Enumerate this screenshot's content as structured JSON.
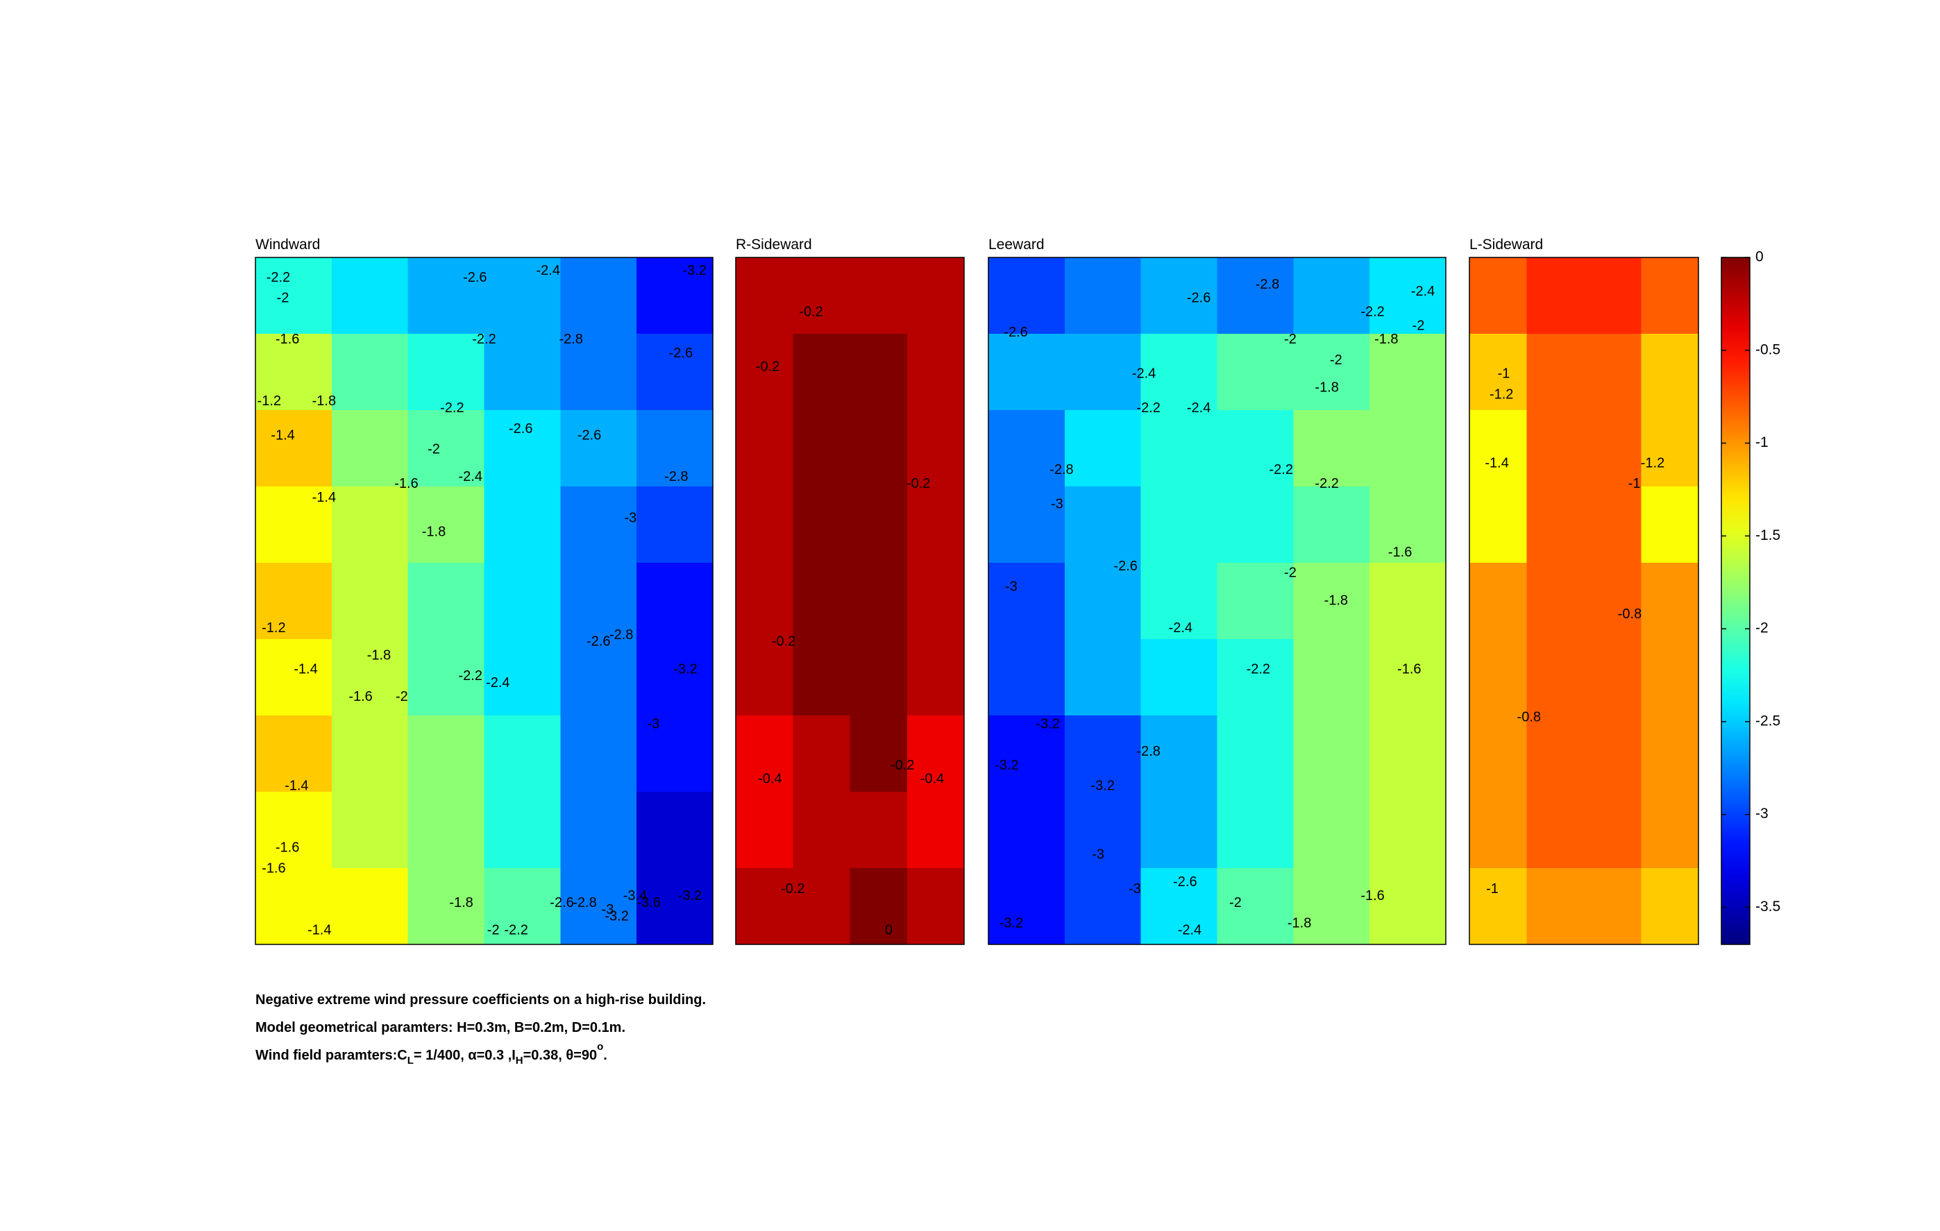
{
  "chart_data": [
    {
      "type": "contour",
      "title": "Windward",
      "xlim": [
        0,
        100
      ],
      "ylim": [
        0,
        100
      ],
      "values": [
        [
          -2.2,
          -2.4,
          -2.6,
          -2.6,
          -2.8,
          -3.2
        ],
        [
          -1.7,
          -2.0,
          -2.2,
          -2.6,
          -2.8,
          -3.0
        ],
        [
          -1.3,
          -1.8,
          -2.1,
          -2.5,
          -2.7,
          -2.8
        ],
        [
          -1.4,
          -1.6,
          -1.9,
          -2.5,
          -2.9,
          -3.1
        ],
        [
          -1.3,
          -1.7,
          -2.0,
          -2.4,
          -2.8,
          -3.2
        ],
        [
          -1.4,
          -1.7,
          -2.1,
          -2.4,
          -2.9,
          -3.2
        ],
        [
          -1.3,
          -1.6,
          -1.9,
          -2.3,
          -2.8,
          -3.3
        ],
        [
          -1.5,
          -1.6,
          -1.9,
          -2.2,
          -2.8,
          -3.4
        ],
        [
          -1.5,
          -1.5,
          -1.8,
          -2.1,
          -2.9,
          -3.5
        ]
      ],
      "labels": [
        {
          "value": -2.2,
          "x": 5,
          "y": 97
        },
        {
          "value": -2,
          "x": 6,
          "y": 94
        },
        {
          "value": -1.6,
          "x": 7,
          "y": 88
        },
        {
          "value": -1.2,
          "x": 3,
          "y": 79
        },
        {
          "value": -1.8,
          "x": 15,
          "y": 79
        },
        {
          "value": -1.4,
          "x": 6,
          "y": 74
        },
        {
          "value": -2.6,
          "x": 48,
          "y": 97
        },
        {
          "value": -2.4,
          "x": 64,
          "y": 98
        },
        {
          "value": -2.2,
          "x": 50,
          "y": 88
        },
        {
          "value": -2.8,
          "x": 69,
          "y": 88
        },
        {
          "value": -2.6,
          "x": 93,
          "y": 86
        },
        {
          "value": -2.2,
          "x": 43,
          "y": 78
        },
        {
          "value": -2.6,
          "x": 58,
          "y": 75
        },
        {
          "value": -2.6,
          "x": 73,
          "y": 74
        },
        {
          "value": -2,
          "x": 39,
          "y": 72
        },
        {
          "value": -2.8,
          "x": 92,
          "y": 68
        },
        {
          "value": -2.4,
          "x": 47,
          "y": 68
        },
        {
          "value": -1.6,
          "x": 33,
          "y": 67
        },
        {
          "value": -1.4,
          "x": 15,
          "y": 65
        },
        {
          "value": -3,
          "x": 82,
          "y": 62
        },
        {
          "value": -1.8,
          "x": 39,
          "y": 60
        },
        {
          "value": -3.2,
          "x": 96,
          "y": 98
        },
        {
          "value": -1.2,
          "x": 4,
          "y": 46
        },
        {
          "value": -1.8,
          "x": 27,
          "y": 42
        },
        {
          "value": -2.6,
          "x": 75,
          "y": 44
        },
        {
          "value": -2.8,
          "x": 80,
          "y": 45
        },
        {
          "value": -1.4,
          "x": 11,
          "y": 40
        },
        {
          "value": -3.2,
          "x": 94,
          "y": 40
        },
        {
          "value": -2.2,
          "x": 47,
          "y": 39
        },
        {
          "value": -2.4,
          "x": 53,
          "y": 38
        },
        {
          "value": -1.6,
          "x": 23,
          "y": 36
        },
        {
          "value": -2,
          "x": 32,
          "y": 36
        },
        {
          "value": -3,
          "x": 87,
          "y": 32
        },
        {
          "value": -1.4,
          "x": 9,
          "y": 23
        },
        {
          "value": -1.6,
          "x": 7,
          "y": 14
        },
        {
          "value": -1.6,
          "x": 4,
          "y": 11
        },
        {
          "value": -1.8,
          "x": 45,
          "y": 6
        },
        {
          "value": -2.6,
          "x": 67,
          "y": 6
        },
        {
          "value": -2.8,
          "x": 72,
          "y": 6
        },
        {
          "value": -3,
          "x": 77,
          "y": 5
        },
        {
          "value": -3.2,
          "x": 79,
          "y": 4
        },
        {
          "value": -3.4,
          "x": 83,
          "y": 7
        },
        {
          "value": -3.6,
          "x": 86,
          "y": 6
        },
        {
          "value": -3.2,
          "x": 95,
          "y": 7
        },
        {
          "value": -1.4,
          "x": 14,
          "y": 2
        },
        {
          "value": -2,
          "x": 52,
          "y": 2
        },
        {
          "value": -2.2,
          "x": 57,
          "y": 2
        }
      ]
    },
    {
      "type": "contour",
      "title": "R-Sideward",
      "xlim": [
        0,
        100
      ],
      "ylim": [
        0,
        100
      ],
      "values": [
        [
          -0.3,
          -0.3,
          -0.3,
          -0.3
        ],
        [
          -0.3,
          -0.1,
          -0.1,
          -0.3
        ],
        [
          -0.3,
          -0.1,
          -0.1,
          -0.3
        ],
        [
          -0.3,
          -0.1,
          -0.1,
          -0.3
        ],
        [
          -0.3,
          -0.1,
          -0.1,
          -0.3
        ],
        [
          -0.3,
          -0.1,
          -0.1,
          -0.3
        ],
        [
          -0.4,
          -0.3,
          -0.1,
          -0.4
        ],
        [
          -0.4,
          -0.3,
          -0.2,
          -0.4
        ],
        [
          -0.3,
          -0.2,
          -0.1,
          -0.3
        ]
      ],
      "labels": [
        {
          "value": -0.2,
          "x": 33,
          "y": 92
        },
        {
          "value": -0.2,
          "x": 14,
          "y": 84
        },
        {
          "value": -0.2,
          "x": 80,
          "y": 67
        },
        {
          "value": -0.2,
          "x": 21,
          "y": 44
        },
        {
          "value": -0.4,
          "x": 15,
          "y": 24
        },
        {
          "value": -0.2,
          "x": 73,
          "y": 26
        },
        {
          "value": -0.4,
          "x": 86,
          "y": 24
        },
        {
          "value": -0.2,
          "x": 25,
          "y": 8
        },
        {
          "value": 0,
          "x": 67,
          "y": 2
        }
      ]
    },
    {
      "type": "contour",
      "title": "Leeward",
      "xlim": [
        0,
        100
      ],
      "ylim": [
        0,
        100
      ],
      "values": [
        [
          -3.0,
          -2.8,
          -2.7,
          -2.9,
          -2.7,
          -2.5
        ],
        [
          -2.6,
          -2.6,
          -2.3,
          -2.1,
          -2.0,
          -1.8
        ],
        [
          -2.8,
          -2.5,
          -2.3,
          -2.2,
          -1.8,
          -1.9
        ],
        [
          -2.9,
          -2.6,
          -2.3,
          -2.2,
          -2.1,
          -1.9
        ],
        [
          -3.1,
          -2.7,
          -2.3,
          -2.1,
          -1.9,
          -1.6
        ],
        [
          -3.0,
          -2.6,
          -2.4,
          -2.2,
          -1.9,
          -1.7
        ],
        [
          -3.2,
          -3.0,
          -2.6,
          -2.2,
          -1.9,
          -1.6
        ],
        [
          -3.2,
          -3.1,
          -2.7,
          -2.2,
          -1.8,
          -1.7
        ],
        [
          -3.3,
          -3.1,
          -2.5,
          -2.0,
          -1.8,
          -1.6
        ]
      ],
      "labels": [
        {
          "value": -2.6,
          "x": 6,
          "y": 89
        },
        {
          "value": -2.6,
          "x": 46,
          "y": 94
        },
        {
          "value": -2.8,
          "x": 61,
          "y": 96
        },
        {
          "value": -2.4,
          "x": 95,
          "y": 95
        },
        {
          "value": -2.2,
          "x": 84,
          "y": 92
        },
        {
          "value": -2,
          "x": 94,
          "y": 90
        },
        {
          "value": -1.8,
          "x": 87,
          "y": 88
        },
        {
          "value": -2,
          "x": 66,
          "y": 88
        },
        {
          "value": -2,
          "x": 76,
          "y": 85
        },
        {
          "value": -1.8,
          "x": 74,
          "y": 81
        },
        {
          "value": -2.4,
          "x": 34,
          "y": 83
        },
        {
          "value": -2.2,
          "x": 35,
          "y": 78
        },
        {
          "value": -2.4,
          "x": 46,
          "y": 78
        },
        {
          "value": -2.8,
          "x": 16,
          "y": 69
        },
        {
          "value": -3,
          "x": 15,
          "y": 64
        },
        {
          "value": -2.2,
          "x": 64,
          "y": 69
        },
        {
          "value": -2.2,
          "x": 74,
          "y": 67
        },
        {
          "value": -2.6,
          "x": 30,
          "y": 55
        },
        {
          "value": -1.6,
          "x": 90,
          "y": 57
        },
        {
          "value": -3,
          "x": 5,
          "y": 52
        },
        {
          "value": -2,
          "x": 66,
          "y": 54
        },
        {
          "value": -1.8,
          "x": 76,
          "y": 50
        },
        {
          "value": -2.4,
          "x": 42,
          "y": 46
        },
        {
          "value": -2.2,
          "x": 59,
          "y": 40
        },
        {
          "value": -1.6,
          "x": 92,
          "y": 40
        },
        {
          "value": -3.2,
          "x": 13,
          "y": 32
        },
        {
          "value": -2.8,
          "x": 35,
          "y": 28
        },
        {
          "value": -3.2,
          "x": 4,
          "y": 26
        },
        {
          "value": -3.2,
          "x": 25,
          "y": 23
        },
        {
          "value": -3,
          "x": 24,
          "y": 13
        },
        {
          "value": -3,
          "x": 32,
          "y": 8
        },
        {
          "value": -2.6,
          "x": 43,
          "y": 9
        },
        {
          "value": -2,
          "x": 54,
          "y": 6
        },
        {
          "value": -2.4,
          "x": 44,
          "y": 2
        },
        {
          "value": -1.8,
          "x": 68,
          "y": 3
        },
        {
          "value": -1.6,
          "x": 84,
          "y": 7
        },
        {
          "value": -3.2,
          "x": 5,
          "y": 3
        }
      ]
    },
    {
      "type": "contour",
      "title": "L-Sideward",
      "xlim": [
        0,
        100
      ],
      "ylim": [
        0,
        100
      ],
      "values": [
        [
          -0.9,
          -0.7,
          -0.7,
          -0.9
        ],
        [
          -1.2,
          -0.8,
          -0.8,
          -1.2
        ],
        [
          -1.4,
          -0.8,
          -0.8,
          -1.3
        ],
        [
          -1.5,
          -0.8,
          -0.8,
          -1.4
        ],
        [
          -1.1,
          -0.8,
          -0.8,
          -1.1
        ],
        [
          -1.0,
          -0.8,
          -0.8,
          -1.0
        ],
        [
          -1.0,
          -0.8,
          -0.8,
          -1.0
        ],
        [
          -1.0,
          -0.9,
          -0.9,
          -1.0
        ],
        [
          -1.2,
          -1.0,
          -1.0,
          -1.3
        ]
      ],
      "labels": [
        {
          "value": -1,
          "x": 15,
          "y": 83
        },
        {
          "value": -1.2,
          "x": 14,
          "y": 80
        },
        {
          "value": -1.4,
          "x": 12,
          "y": 70
        },
        {
          "value": -1.2,
          "x": 80,
          "y": 70
        },
        {
          "value": -1,
          "x": 72,
          "y": 67
        },
        {
          "value": -0.8,
          "x": 70,
          "y": 48
        },
        {
          "value": -0.8,
          "x": 26,
          "y": 33
        },
        {
          "value": -1,
          "x": 10,
          "y": 8
        }
      ]
    }
  ],
  "colorbar": {
    "colormap": "jet",
    "clim": [
      -3.7,
      0
    ],
    "ticks": [
      0,
      -0.5,
      -1,
      -1.5,
      -2,
      -2.5,
      -3,
      -3.5
    ]
  },
  "caption": {
    "line1": "Negative extreme wind pressure coefficients on a high-rise building.",
    "line2": "Model geometrical paramters: H=0.3m, B=0.2m, D=0.1m.",
    "line3": [
      "Wind field paramters:C",
      "L",
      "= 1/400, α=0.3 ,I",
      "H",
      "=0.38, θ=90",
      "o",
      "."
    ]
  }
}
